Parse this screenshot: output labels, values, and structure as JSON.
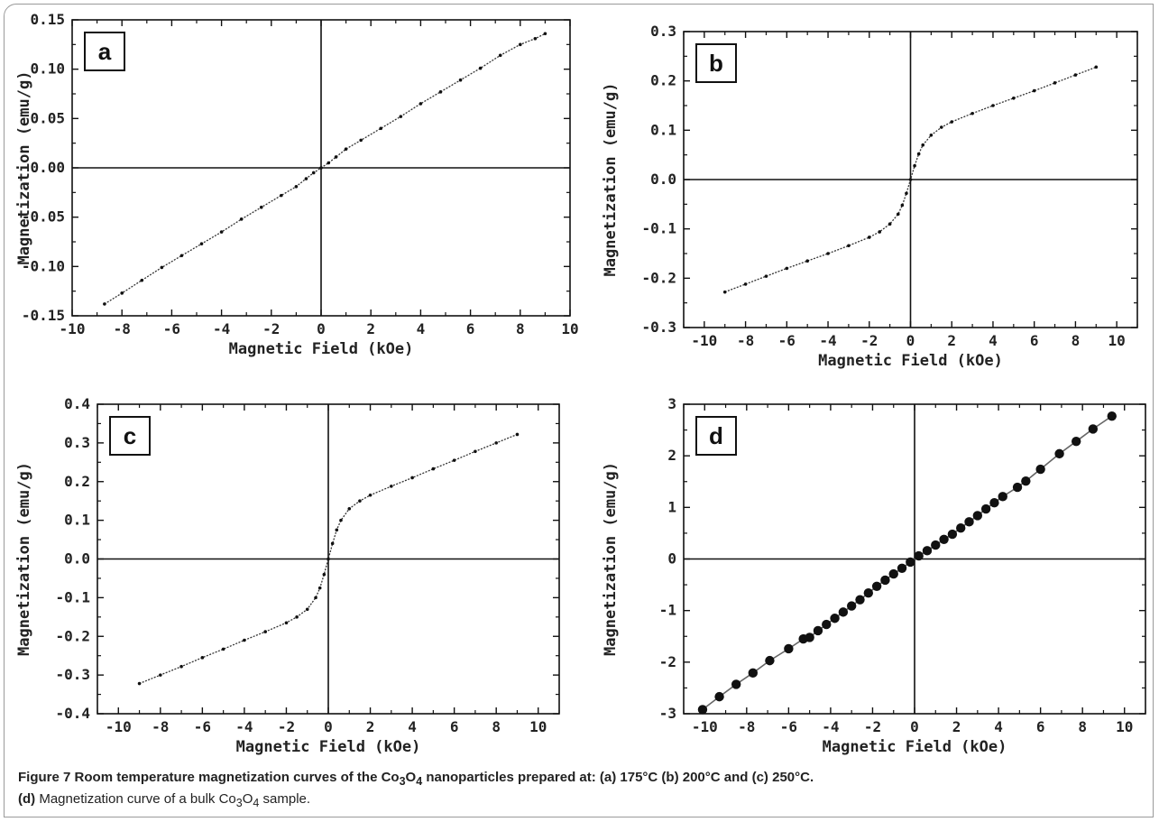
{
  "figure": {
    "caption_label": "Figure 7",
    "caption_line1_text": "Room temperature magnetization curves of the Co",
    "caption_line1_sub1": "3",
    "caption_line1_mid": "O",
    "caption_line1_sub2": "4",
    "caption_line1_rest": " nanoparticles prepared at: (a) 175°C (b) 200°C and (c) 250°C.",
    "caption_line2_label": "(d)",
    "caption_line2_text": " Magnetization curve of a bulk Co",
    "caption_line2_sub1": "3",
    "caption_line2_mid": "O",
    "caption_line2_sub2": "4",
    "caption_line2_rest": " sample."
  },
  "chart_data": [
    {
      "type": "scatter",
      "panel": "a",
      "xlabel": "Magnetic Field (kOe)",
      "ylabel": "Magnetization (emu/g)",
      "xlim": [
        -10,
        10
      ],
      "ylim": [
        -0.15,
        0.15
      ],
      "xticks": [
        "-10",
        "-8",
        "-6",
        "-4",
        "-2",
        "0",
        "2",
        "4",
        "6",
        "8",
        "10"
      ],
      "yticks": [
        "-0.15",
        "-0.10",
        "-0.05",
        "0.00",
        "0.05",
        "0.10",
        "0.15"
      ],
      "grid": false,
      "series": [
        {
          "x": [
            -8.7,
            -8.0,
            -7.2,
            -6.4,
            -5.6,
            -4.8,
            -4.0,
            -3.2,
            -2.4,
            -1.6,
            -1.0,
            -0.6,
            -0.3,
            0.0,
            0.3,
            0.6,
            1.0,
            1.6,
            2.4,
            3.2,
            4.0,
            4.8,
            5.6,
            6.4,
            7.2,
            8.0,
            8.6,
            9.0
          ],
          "y": [
            -0.138,
            -0.127,
            -0.114,
            -0.101,
            -0.089,
            -0.077,
            -0.065,
            -0.052,
            -0.04,
            -0.028,
            -0.019,
            -0.011,
            -0.005,
            0.0,
            0.005,
            0.011,
            0.019,
            0.028,
            0.04,
            0.052,
            0.065,
            0.077,
            0.089,
            0.101,
            0.114,
            0.125,
            0.131,
            0.136
          ]
        }
      ]
    },
    {
      "type": "scatter",
      "panel": "b",
      "xlabel": "Magnetic Field (kOe)",
      "ylabel": "Magnetization (emu/g)",
      "xlim": [
        -11,
        11
      ],
      "ylim": [
        -0.3,
        0.3
      ],
      "xticks": [
        "-10",
        "-8",
        "-6",
        "-4",
        "-2",
        "0",
        "2",
        "4",
        "6",
        "8",
        "10"
      ],
      "yticks": [
        "-0.3",
        "-0.2",
        "-0.1",
        "0.0",
        "0.1",
        "0.2",
        "0.3"
      ],
      "grid": false,
      "series": [
        {
          "x": [
            -9.0,
            -8.0,
            -7.0,
            -6.0,
            -5.0,
            -4.0,
            -3.0,
            -2.0,
            -1.5,
            -1.0,
            -0.6,
            -0.4,
            -0.2,
            0.0,
            0.2,
            0.4,
            0.6,
            1.0,
            1.5,
            2.0,
            3.0,
            4.0,
            5.0,
            6.0,
            7.0,
            8.0,
            9.0
          ],
          "y": [
            -0.228,
            -0.212,
            -0.196,
            -0.18,
            -0.165,
            -0.15,
            -0.134,
            -0.117,
            -0.106,
            -0.09,
            -0.07,
            -0.052,
            -0.028,
            0.0,
            0.028,
            0.052,
            0.07,
            0.09,
            0.106,
            0.117,
            0.134,
            0.15,
            0.165,
            0.18,
            0.196,
            0.212,
            0.228
          ]
        }
      ]
    },
    {
      "type": "scatter",
      "panel": "c",
      "xlabel": "Magnetic Field (kOe)",
      "ylabel": "Magnetization (emu/g)",
      "xlim": [
        -11,
        11
      ],
      "ylim": [
        -0.4,
        0.4
      ],
      "xticks": [
        "-10",
        "-8",
        "-6",
        "-4",
        "-2",
        "0",
        "2",
        "4",
        "6",
        "8",
        "10"
      ],
      "yticks": [
        "-0.4",
        "-0.3",
        "-0.2",
        "-0.1",
        "0.0",
        "0.1",
        "0.2",
        "0.3",
        "0.4"
      ],
      "grid": false,
      "series": [
        {
          "x": [
            -9.0,
            -8.0,
            -7.0,
            -6.0,
            -5.0,
            -4.0,
            -3.0,
            -2.0,
            -1.5,
            -1.0,
            -0.6,
            -0.4,
            -0.2,
            0.0,
            0.2,
            0.4,
            0.6,
            1.0,
            1.5,
            2.0,
            3.0,
            4.0,
            5.0,
            6.0,
            7.0,
            8.0,
            9.0
          ],
          "y": [
            -0.322,
            -0.3,
            -0.278,
            -0.255,
            -0.233,
            -0.21,
            -0.188,
            -0.165,
            -0.15,
            -0.13,
            -0.1,
            -0.075,
            -0.04,
            0.0,
            0.04,
            0.075,
            0.1,
            0.13,
            0.15,
            0.165,
            0.188,
            0.21,
            0.233,
            0.255,
            0.278,
            0.3,
            0.322
          ]
        }
      ]
    },
    {
      "type": "line",
      "panel": "d",
      "xlabel": "Magnetic Field (kOe)",
      "ylabel": "Magnetization (emu/g)",
      "xlim": [
        -11,
        11
      ],
      "ylim": [
        -3,
        3
      ],
      "xticks": [
        "-10",
        "-8",
        "-6",
        "-4",
        "-2",
        "0",
        "2",
        "4",
        "6",
        "8",
        "10"
      ],
      "yticks": [
        "-3",
        "-2",
        "-1",
        "0",
        "1",
        "2",
        "3"
      ],
      "grid": false,
      "markers": "filled-circle",
      "series": [
        {
          "x": [
            -10.1,
            -9.3,
            -8.5,
            -7.7,
            -6.9,
            -6.0,
            -5.3,
            -5.0,
            -4.6,
            -4.2,
            -3.8,
            -3.4,
            -3.0,
            -2.6,
            -2.2,
            -1.8,
            -1.4,
            -1.0,
            -0.6,
            -0.2,
            0.2,
            0.6,
            1.0,
            1.4,
            1.8,
            2.2,
            2.6,
            3.0,
            3.4,
            3.8,
            4.2,
            4.9,
            5.3,
            6.0,
            6.9,
            7.7,
            8.5,
            9.4
          ],
          "y": [
            -2.92,
            -2.67,
            -2.43,
            -2.21,
            -1.97,
            -1.74,
            -1.55,
            -1.52,
            -1.39,
            -1.27,
            -1.15,
            -1.03,
            -0.91,
            -0.79,
            -0.66,
            -0.53,
            -0.41,
            -0.29,
            -0.18,
            -0.06,
            0.06,
            0.16,
            0.27,
            0.38,
            0.48,
            0.6,
            0.72,
            0.84,
            0.97,
            1.09,
            1.21,
            1.39,
            1.51,
            1.74,
            2.04,
            2.28,
            2.52,
            2.77
          ]
        }
      ]
    }
  ]
}
